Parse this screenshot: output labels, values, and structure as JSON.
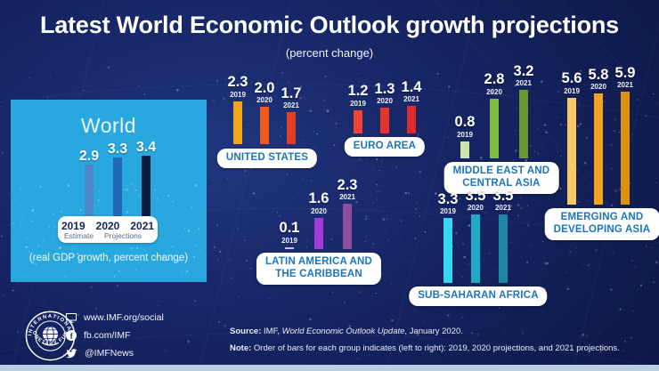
{
  "title": "Latest World Economic Outlook growth projections",
  "subtitle": "(percent change)",
  "world_panel": {
    "title": "World",
    "caption": "(real GDP growth, percent change)",
    "years": [
      "2019",
      "2020",
      "2021"
    ],
    "values": [
      "2.9",
      "3.3",
      "3.4"
    ],
    "colors": [
      "#4e86c6",
      "#2268b4",
      "#0b1b44"
    ],
    "legend": {
      "estimate": "Estimate",
      "projections": "Projections"
    },
    "panel_color": "#29a8e0"
  },
  "regions": [
    {
      "label_lines": [
        "UNITED STATES"
      ],
      "years": [
        "2019",
        "2020",
        "2021"
      ],
      "values": [
        "2.3",
        "2.0",
        "1.7"
      ],
      "colors": [
        "#f2a516",
        "#ec5c1e",
        "#e33d22"
      ]
    },
    {
      "label_lines": [
        "EURO AREA"
      ],
      "years": [
        "2019",
        "2020",
        "2021"
      ],
      "values": [
        "1.2",
        "1.3",
        "1.4"
      ],
      "colors": [
        "#f04237",
        "#e8342c",
        "#dc2b28"
      ]
    },
    {
      "label_lines": [
        "MIDDLE EAST AND",
        "CENTRAL ASIA"
      ],
      "years": [
        "2019",
        "2020",
        "2021"
      ],
      "values": [
        "0.8",
        "2.8",
        "3.2"
      ],
      "colors": [
        "#cfe2a6",
        "#7dbb41",
        "#69982f"
      ]
    },
    {
      "label_lines": [
        "EMERGING AND",
        "DEVELOPING ASIA"
      ],
      "years": [
        "2019",
        "2020",
        "2021"
      ],
      "values": [
        "5.6",
        "5.8",
        "5.9"
      ],
      "colors": [
        "#f9c764",
        "#f2a41d",
        "#e18f10"
      ]
    },
    {
      "label_lines": [
        "LATIN AMERICA AND",
        "THE CARIBBEAN"
      ],
      "years": [
        "2019",
        "2020",
        "2021"
      ],
      "values": [
        "0.1",
        "1.6",
        "2.3"
      ],
      "colors": [
        "#e2b5e6",
        "#a43bd8",
        "#8f4b9d"
      ]
    },
    {
      "label_lines": [
        "SUB-SAHARAN AFRICA"
      ],
      "years": [
        "2019",
        "2020",
        "2021"
      ],
      "values": [
        "3.3",
        "3.5",
        "3.5"
      ],
      "colors": [
        "#35d6f2",
        "#1fa9c6",
        "#1d86a5"
      ]
    }
  ],
  "footer": {
    "social": [
      {
        "icon": "monitor-icon",
        "text": "www.IMF.org/social"
      },
      {
        "icon": "facebook-icon",
        "text": "fb.com/IMF"
      },
      {
        "icon": "twitter-icon",
        "text": "@IMFNews"
      }
    ],
    "source_label": "Source:",
    "source_pre": " IMF, ",
    "source_italic": "World Economic Outlook Update",
    "source_post": ", January 2020.",
    "note_label": "Note:",
    "note_text": " Order of bars for each group indicates (left to right): 2019, 2020 projections, and 2021 projections.",
    "logo_text_top": "INTERNATIONAL",
    "logo_text_bottom": "MONETARY FUND"
  },
  "chart_data": {
    "type": "bar",
    "title": "Latest World Economic Outlook growth projections",
    "subtitle": "(percent change)",
    "unit": "real GDP growth, percent change",
    "categories": [
      "2019",
      "2020",
      "2021"
    ],
    "series": [
      {
        "name": "World",
        "values": [
          2.9,
          3.3,
          3.4
        ]
      },
      {
        "name": "United States",
        "values": [
          2.3,
          2.0,
          1.7
        ]
      },
      {
        "name": "Euro Area",
        "values": [
          1.2,
          1.3,
          1.4
        ]
      },
      {
        "name": "Middle East and Central Asia",
        "values": [
          0.8,
          2.8,
          3.2
        ]
      },
      {
        "name": "Emerging and Developing Asia",
        "values": [
          5.6,
          5.8,
          5.9
        ]
      },
      {
        "name": "Latin America and the Caribbean",
        "values": [
          0.1,
          1.6,
          2.3
        ]
      },
      {
        "name": "Sub-Saharan Africa",
        "values": [
          3.3,
          3.5,
          3.5
        ]
      }
    ],
    "legend_notes": [
      "2019 = Estimate",
      "2020 and 2021 = Projections"
    ],
    "grid": false,
    "source": "IMF, World Economic Outlook Update, January 2020."
  }
}
